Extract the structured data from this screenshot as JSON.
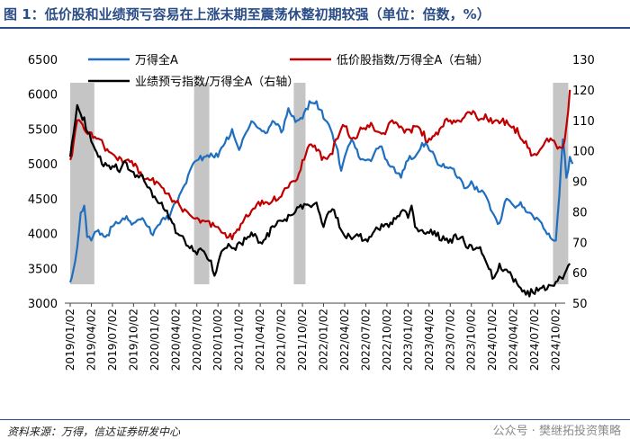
{
  "title": "图 1：低价股和业绩预亏容易在上涨末期至震荡休整初期较强（单位：倍数，%）",
  "source": "资料来源：万得，信达证券研发中心",
  "watermark": "公众号 · 樊继拓投资策略",
  "chart_data": {
    "type": "line",
    "title": "低价股和业绩预亏容易在上涨末期至震荡休整初期较强",
    "units": "倍数，%",
    "x_ticks": [
      "2019/01/02",
      "2019/04/02",
      "2019/07/02",
      "2019/10/02",
      "2020/01/02",
      "2020/04/02",
      "2020/07/02",
      "2020/10/02",
      "2021/01/02",
      "2021/04/02",
      "2021/07/02",
      "2021/10/02",
      "2022/01/02",
      "2022/04/02",
      "2022/07/02",
      "2022/10/02",
      "2023/01/02",
      "2023/04/02",
      "2023/07/02",
      "2023/10/02",
      "2024/01/02",
      "2024/04/02",
      "2024/07/02",
      "2024/10/02"
    ],
    "left_axis": {
      "ticks": [
        3000,
        3500,
        4000,
        4500,
        5000,
        5500,
        6000,
        6500
      ],
      "range": [
        3000,
        6500
      ]
    },
    "right_axis": {
      "ticks": [
        50,
        60,
        70,
        80,
        90,
        100,
        110,
        120,
        130
      ],
      "range": [
        50,
        130
      ]
    },
    "shaded_periods": [
      {
        "from": "2019/01/02",
        "to": "2019/04/15"
      },
      {
        "from": "2020/06/20",
        "to": "2020/08/25"
      },
      {
        "from": "2021/08/25",
        "to": "2021/10/15"
      },
      {
        "from": "2024/09/20",
        "to": "2024/11/25"
      }
    ],
    "series": [
      {
        "name": "万得全A",
        "axis": "left",
        "color": "#1f6fc0",
        "points": [
          [
            0,
            3300
          ],
          [
            0.4,
            3450
          ],
          [
            1,
            3800
          ],
          [
            1.5,
            4300
          ],
          [
            2,
            4400
          ],
          [
            2.4,
            3950
          ],
          [
            3,
            3900
          ],
          [
            4,
            4050
          ],
          [
            5,
            3950
          ],
          [
            6,
            4100
          ],
          [
            7,
            4150
          ],
          [
            8,
            4250
          ],
          [
            9,
            4150
          ],
          [
            10,
            4200
          ],
          [
            11,
            4100
          ],
          [
            11.5,
            4000
          ],
          [
            12,
            4050
          ],
          [
            13,
            4200
          ],
          [
            14,
            4200
          ],
          [
            15,
            4450
          ],
          [
            16,
            4650
          ],
          [
            17,
            4900
          ],
          [
            18,
            5050
          ],
          [
            19,
            5100
          ],
          [
            20,
            5150
          ],
          [
            21,
            5100
          ],
          [
            22,
            5300
          ],
          [
            23,
            5500
          ],
          [
            24,
            5200
          ],
          [
            25,
            5450
          ],
          [
            26,
            5600
          ],
          [
            27,
            5500
          ],
          [
            28,
            5450
          ],
          [
            29,
            5600
          ],
          [
            30,
            5450
          ],
          [
            31,
            5800
          ],
          [
            32,
            5600
          ],
          [
            33,
            5650
          ],
          [
            34,
            5900
          ],
          [
            35,
            5900
          ],
          [
            36,
            5650
          ],
          [
            37,
            5500
          ],
          [
            38,
            5200
          ],
          [
            38.5,
            4900
          ],
          [
            39,
            5100
          ],
          [
            40,
            5350
          ],
          [
            41,
            5100
          ],
          [
            42,
            5050
          ],
          [
            43,
            5100
          ],
          [
            44,
            5250
          ],
          [
            45,
            5050
          ],
          [
            46,
            4950
          ],
          [
            47,
            4800
          ],
          [
            48,
            5050
          ],
          [
            49,
            5100
          ],
          [
            50,
            5300
          ],
          [
            51,
            5200
          ],
          [
            52,
            5050
          ],
          [
            53,
            5000
          ],
          [
            54,
            4950
          ],
          [
            55,
            4800
          ],
          [
            56,
            4650
          ],
          [
            57,
            4750
          ],
          [
            58,
            4600
          ],
          [
            59,
            4550
          ],
          [
            60,
            4300
          ],
          [
            61,
            4150
          ],
          [
            62,
            4500
          ],
          [
            63,
            4400
          ],
          [
            64,
            4450
          ],
          [
            65,
            4300
          ],
          [
            66,
            4200
          ],
          [
            67,
            4150
          ],
          [
            68,
            4000
          ],
          [
            69,
            3900
          ],
          [
            69.5,
            4550
          ],
          [
            70,
            5350
          ],
          [
            70.5,
            4800
          ],
          [
            71,
            5100
          ],
          [
            71.4,
            5000
          ]
        ]
      },
      {
        "name": "低价股指数/万得全A（右轴）",
        "axis": "right",
        "color": "#c00000",
        "points": [
          [
            0,
            97
          ],
          [
            0.5,
            103
          ],
          [
            1,
            110
          ],
          [
            2,
            107
          ],
          [
            3,
            106
          ],
          [
            4,
            104
          ],
          [
            5,
            100
          ],
          [
            6,
            99
          ],
          [
            7,
            98
          ],
          [
            8,
            97
          ],
          [
            9,
            95
          ],
          [
            10,
            93
          ],
          [
            11,
            91
          ],
          [
            12,
            89
          ],
          [
            13,
            88
          ],
          [
            14,
            86
          ],
          [
            15,
            83
          ],
          [
            16,
            80
          ],
          [
            17,
            79
          ],
          [
            18,
            78
          ],
          [
            19,
            77
          ],
          [
            20,
            75
          ],
          [
            21,
            75
          ],
          [
            22,
            73
          ],
          [
            23,
            71
          ],
          [
            24,
            74
          ],
          [
            25,
            79
          ],
          [
            26,
            81
          ],
          [
            27,
            82
          ],
          [
            28,
            83
          ],
          [
            29,
            85
          ],
          [
            30,
            85
          ],
          [
            31,
            88
          ],
          [
            32,
            90
          ],
          [
            33,
            97
          ],
          [
            34,
            102
          ],
          [
            35,
            100
          ],
          [
            36,
            98
          ],
          [
            37,
            99
          ],
          [
            38,
            104
          ],
          [
            39,
            108
          ],
          [
            40,
            104
          ],
          [
            41,
            106
          ],
          [
            42,
            107
          ],
          [
            43,
            108
          ],
          [
            44,
            106
          ],
          [
            45,
            107
          ],
          [
            46,
            109
          ],
          [
            47,
            108
          ],
          [
            48,
            107
          ],
          [
            49,
            108
          ],
          [
            50,
            105
          ],
          [
            51,
            104
          ],
          [
            52,
            106
          ],
          [
            53,
            108
          ],
          [
            54,
            110
          ],
          [
            55,
            110
          ],
          [
            56,
            111
          ],
          [
            57,
            112
          ],
          [
            58,
            110
          ],
          [
            59,
            112
          ],
          [
            60,
            109
          ],
          [
            61,
            109
          ],
          [
            62,
            110
          ],
          [
            63,
            108
          ],
          [
            64,
            104
          ],
          [
            65,
            101
          ],
          [
            66,
            99
          ],
          [
            67,
            101
          ],
          [
            68,
            103
          ],
          [
            69,
            102
          ],
          [
            70,
            101
          ],
          [
            70.5,
            108
          ],
          [
            71,
            120
          ]
        ]
      },
      {
        "name": "业绩预亏指数/万得全A（右轴）",
        "axis": "right",
        "color": "#000000",
        "points": [
          [
            0,
            98
          ],
          [
            0.5,
            106
          ],
          [
            1,
            115
          ],
          [
            1.5,
            112
          ],
          [
            2,
            111
          ],
          [
            2.5,
            106
          ],
          [
            3,
            103
          ],
          [
            4,
            98
          ],
          [
            5,
            96
          ],
          [
            6,
            95
          ],
          [
            7,
            93
          ],
          [
            8,
            96
          ],
          [
            9,
            93
          ],
          [
            10,
            92
          ],
          [
            11,
            88
          ],
          [
            12,
            85
          ],
          [
            13,
            83
          ],
          [
            14,
            78
          ],
          [
            15,
            73
          ],
          [
            16,
            72
          ],
          [
            17,
            68
          ],
          [
            18,
            66
          ],
          [
            19,
            67
          ],
          [
            20,
            64
          ],
          [
            20.5,
            59
          ],
          [
            21,
            63
          ],
          [
            22,
            68
          ],
          [
            23,
            68
          ],
          [
            24,
            70
          ],
          [
            25,
            71
          ],
          [
            26,
            72
          ],
          [
            27,
            70
          ],
          [
            28,
            73
          ],
          [
            29,
            75
          ],
          [
            30,
            77
          ],
          [
            31,
            79
          ],
          [
            32,
            80
          ],
          [
            33,
            81
          ],
          [
            34,
            82
          ],
          [
            35,
            83
          ],
          [
            35.5,
            79
          ],
          [
            36,
            75
          ],
          [
            37,
            80
          ],
          [
            38,
            78
          ],
          [
            39,
            72
          ],
          [
            40,
            71
          ],
          [
            41,
            72
          ],
          [
            42,
            71
          ],
          [
            43,
            73
          ],
          [
            44,
            74
          ],
          [
            45,
            76
          ],
          [
            46,
            78
          ],
          [
            47,
            80
          ],
          [
            48,
            78
          ],
          [
            48.5,
            82
          ],
          [
            49,
            75
          ],
          [
            50,
            74
          ],
          [
            51,
            73
          ],
          [
            52,
            72
          ],
          [
            53,
            72
          ],
          [
            54,
            71
          ],
          [
            55,
            71
          ],
          [
            56,
            70
          ],
          [
            57,
            69
          ],
          [
            58,
            68
          ],
          [
            59,
            64
          ],
          [
            60,
            58
          ],
          [
            61,
            63
          ],
          [
            62,
            61
          ],
          [
            63,
            57
          ],
          [
            64,
            55
          ],
          [
            65,
            54
          ],
          [
            66,
            53
          ],
          [
            67,
            55
          ],
          [
            68,
            56
          ],
          [
            69,
            57
          ],
          [
            70,
            58
          ],
          [
            71,
            63
          ]
        ]
      }
    ]
  }
}
